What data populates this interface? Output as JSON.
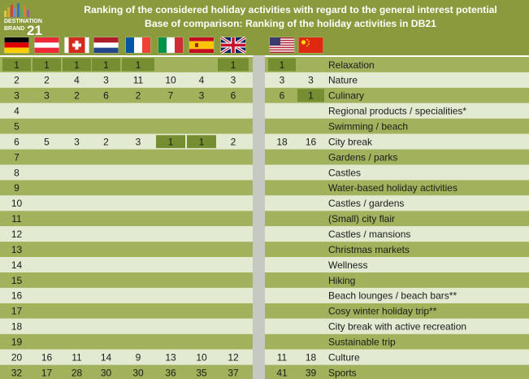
{
  "title_line1": "Ranking of the considered holiday activities with regard to the general interest potential",
  "title_line2": "Base of comparison: Ranking of the holiday activities in DB21",
  "logo": {
    "word1": "DESTINATION",
    "word2": "BRAND",
    "number": "21"
  },
  "colors": {
    "header": "#8b9a3c",
    "rowDark": "#a2b25c",
    "rowLight": "#e3ead2",
    "highlight": "#758e31",
    "separator": "#c6c8c2"
  },
  "markets": [
    "germany-flag",
    "austria-flag",
    "switzerland-flag",
    "netherlands-flag",
    "france-flag",
    "italy-flag",
    "spain-flag",
    "uk-flag",
    "usa-flag",
    "china-flag"
  ],
  "chart_data": {
    "type": "table",
    "activities": [
      "Relaxation",
      "Nature",
      "Culinary",
      "Regional products / specialities*",
      "Swimming / beach",
      "City break",
      "Gardens / parks",
      "Castles",
      "Water-based holiday activities",
      "Castles / gardens",
      "(Small) city flair",
      "Castles / mansions",
      "Christmas markets",
      "Wellness",
      "Hiking",
      "Beach lounges / beach bars**",
      "Cosy winter holiday trip**",
      "City break with active recreation",
      "Sustainable trip",
      "Culture",
      "Sports"
    ],
    "rows": [
      [
        "1",
        "1",
        "1",
        "1",
        "1",
        "",
        "",
        "1",
        "1",
        ""
      ],
      [
        "2",
        "2",
        "4",
        "3",
        "11",
        "10",
        "4",
        "3",
        "3",
        "3"
      ],
      [
        "3",
        "3",
        "2",
        "6",
        "2",
        "7",
        "3",
        "6",
        "6",
        "1"
      ],
      [
        "4",
        "",
        "",
        "",
        "",
        "",
        "",
        "",
        "",
        ""
      ],
      [
        "5",
        "",
        "",
        "",
        "",
        "",
        "",
        "",
        "",
        ""
      ],
      [
        "6",
        "5",
        "3",
        "2",
        "3",
        "1",
        "1",
        "2",
        "18",
        "16"
      ],
      [
        "7",
        "",
        "",
        "",
        "",
        "",
        "",
        "",
        "",
        ""
      ],
      [
        "8",
        "",
        "",
        "",
        "",
        "",
        "",
        "",
        "",
        ""
      ],
      [
        "9",
        "",
        "",
        "",
        "",
        "",
        "",
        "",
        "",
        ""
      ],
      [
        "10",
        "",
        "",
        "",
        "",
        "",
        "",
        "",
        "",
        ""
      ],
      [
        "11",
        "",
        "",
        "",
        "",
        "",
        "",
        "",
        "",
        ""
      ],
      [
        "12",
        "",
        "",
        "",
        "",
        "",
        "",
        "",
        "",
        ""
      ],
      [
        "13",
        "",
        "",
        "",
        "",
        "",
        "",
        "",
        "",
        ""
      ],
      [
        "14",
        "",
        "",
        "",
        "",
        "",
        "",
        "",
        "",
        ""
      ],
      [
        "15",
        "",
        "",
        "",
        "",
        "",
        "",
        "",
        "",
        ""
      ],
      [
        "16",
        "",
        "",
        "",
        "",
        "",
        "",
        "",
        "",
        ""
      ],
      [
        "17",
        "",
        "",
        "",
        "",
        "",
        "",
        "",
        "",
        ""
      ],
      [
        "18",
        "",
        "",
        "",
        "",
        "",
        "",
        "",
        "",
        ""
      ],
      [
        "19",
        "",
        "",
        "",
        "",
        "",
        "",
        "",
        "",
        ""
      ],
      [
        "20",
        "16",
        "11",
        "14",
        "9",
        "13",
        "10",
        "12",
        "11",
        "18"
      ],
      [
        "32",
        "17",
        "28",
        "30",
        "30",
        "36",
        "35",
        "37",
        "41",
        "39"
      ]
    ],
    "highlighted": [
      [
        0,
        0
      ],
      [
        0,
        1
      ],
      [
        0,
        2
      ],
      [
        0,
        3
      ],
      [
        0,
        4
      ],
      [
        0,
        7
      ],
      [
        0,
        8
      ],
      [
        2,
        9
      ],
      [
        5,
        5
      ],
      [
        5,
        6
      ]
    ]
  }
}
